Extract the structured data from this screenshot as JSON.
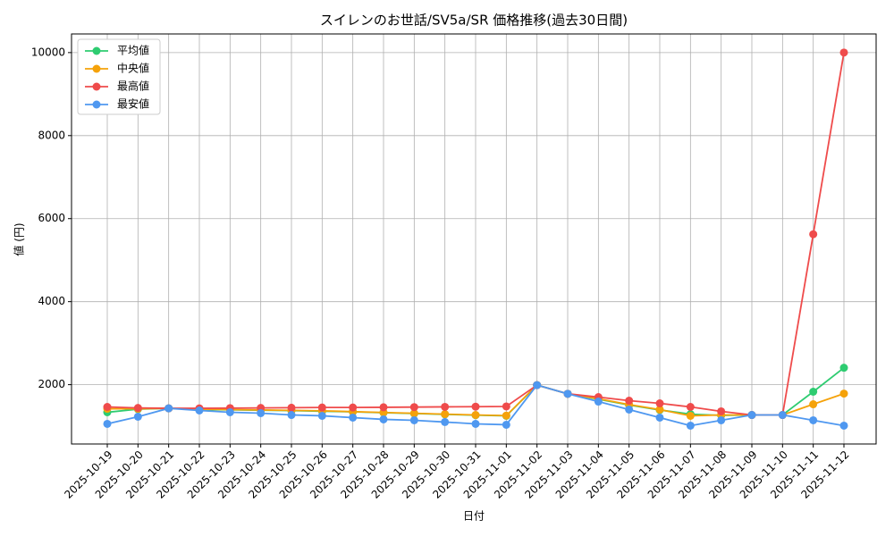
{
  "chart_data": {
    "type": "line",
    "title": "スイレンのお世話/SV5a/SR 価格推移(過去30日間)",
    "x_label": "日付",
    "y_label": "値 (円)",
    "categories": [
      "2025-10-19",
      "2025-10-20",
      "2025-10-21",
      "2025-10-22",
      "2025-10-23",
      "2025-10-24",
      "2025-10-25",
      "2025-10-26",
      "2025-10-27",
      "2025-10-28",
      "2025-10-29",
      "2025-10-30",
      "2025-10-31",
      "2025-11-01",
      "2025-11-02",
      "2025-11-03",
      "2025-11-04",
      "2025-11-05",
      "2025-11-06",
      "2025-11-07",
      "2025-11-08",
      "2025-11-09",
      "2025-11-10",
      "2025-11-11",
      "2025-11-12"
    ],
    "series": [
      {
        "name": "平均値",
        "color": "#2ecc71",
        "values": [
          1335,
          1410,
          1430,
          1400,
          1395,
          1385,
          1375,
          1360,
          1345,
          1325,
          1305,
          1285,
          1265,
          1250,
          1990,
          1780,
          1650,
          1510,
          1390,
          1290,
          1260,
          1270,
          1270,
          1830,
          2407
        ]
      },
      {
        "name": "中央値",
        "color": "#f5a20a",
        "values": [
          1420,
          1420,
          1430,
          1410,
          1400,
          1390,
          1380,
          1370,
          1350,
          1330,
          1310,
          1290,
          1270,
          1255,
          1990,
          1780,
          1660,
          1520,
          1400,
          1250,
          1270,
          1270,
          1270,
          1528,
          1785
        ]
      },
      {
        "name": "最高値",
        "color": "#ef4b4b",
        "values": [
          1464,
          1440,
          1430,
          1430,
          1435,
          1440,
          1445,
          1450,
          1450,
          1455,
          1460,
          1465,
          1470,
          1475,
          1990,
          1780,
          1700,
          1614,
          1550,
          1464,
          1357,
          1270,
          1270,
          5624,
          10000
        ]
      },
      {
        "name": "最安値",
        "color": "#4f98f0",
        "values": [
          1056,
          1228,
          1430,
          1378,
          1335,
          1314,
          1270,
          1250,
          1206,
          1164,
          1142,
          1100,
          1056,
          1035,
          1990,
          1780,
          1592,
          1400,
          1206,
          1013,
          1142,
          1270,
          1270,
          1142,
          1013
        ]
      }
    ],
    "ylim": [
      571,
      10449
    ],
    "yticks": [
      2000,
      4000,
      6000,
      8000,
      10000
    ],
    "grid": true,
    "legend": "upper-left"
  }
}
